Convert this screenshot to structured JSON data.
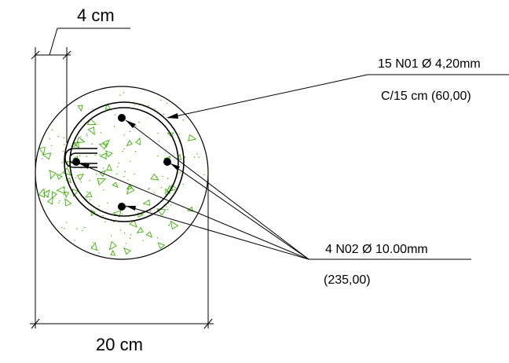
{
  "dimensions": {
    "cover": "4 cm",
    "diameter": "20 cm"
  },
  "annotations": {
    "stirrup_spec": "15 N01 Ø 4,20mm",
    "stirrup_spacing": "C/15 cm (60,00)",
    "longitudinal_spec": "4 N02 Ø 10.00mm",
    "longitudinal_length": "(235,00)"
  },
  "colors": {
    "line": "#000000",
    "concrete_hatch": "#3cb300"
  },
  "icons": {
    "rebar_bar": "filled-circle",
    "hatch_mark": "triangle"
  }
}
